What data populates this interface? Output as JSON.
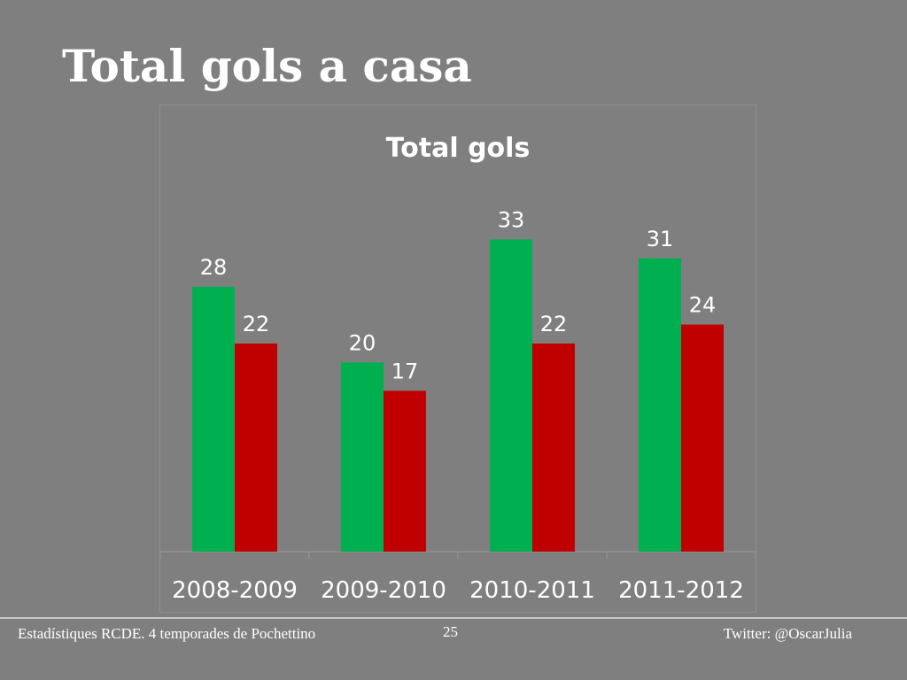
{
  "slide": {
    "title": "Total gols a casa"
  },
  "footer": {
    "left_text": "Estadístiques RCDE. 4 temporades de Pochettino",
    "page_number": "25",
    "right_text": "Twitter: @OscarJulia"
  },
  "colors": {
    "background": "#7f7f7f",
    "series_green": "#00b050",
    "series_red": "#c00000",
    "text": "#ffffff"
  },
  "chart_data": {
    "type": "bar",
    "title": "Total gols",
    "xlabel": "",
    "ylabel": "",
    "categories": [
      "2008-2009",
      "2009-2010",
      "2010-2011",
      "2011-2012"
    ],
    "series": [
      {
        "color": "#00b050",
        "values": [
          28,
          20,
          33,
          31
        ]
      },
      {
        "color": "#c00000",
        "values": [
          22,
          17,
          22,
          24
        ]
      }
    ],
    "ylim": [
      0,
      38
    ],
    "grid": false,
    "data_labels": true,
    "legend": "none"
  }
}
